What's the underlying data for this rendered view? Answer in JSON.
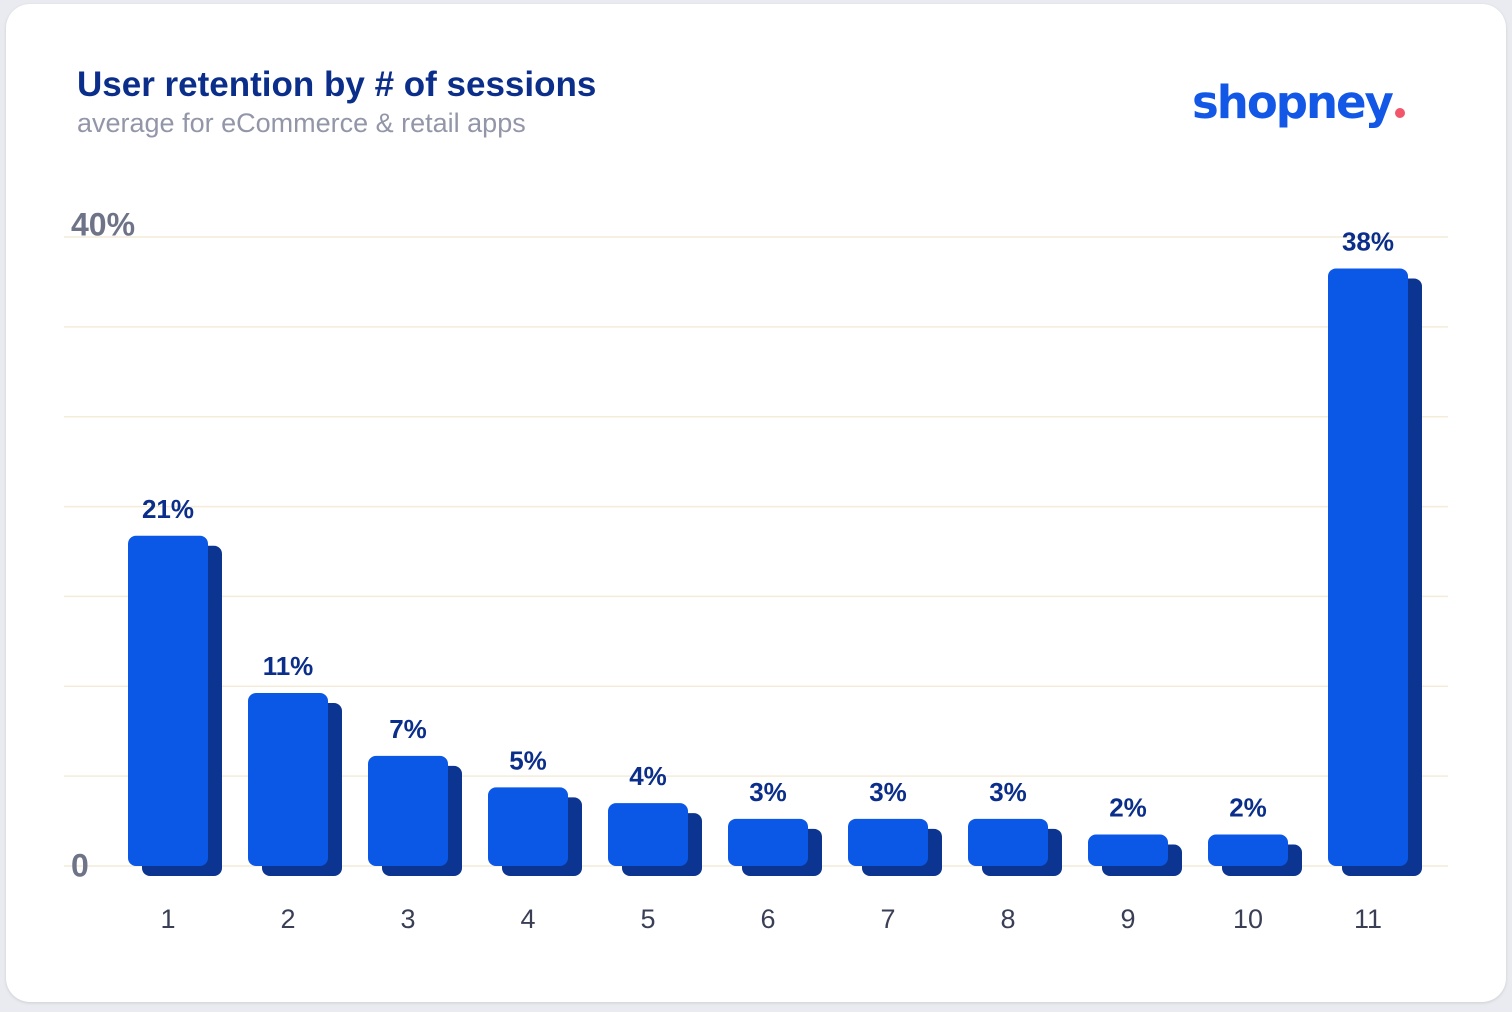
{
  "header": {
    "title": "User retention by # of sessions",
    "subtitle": "average for eCommerce & retail apps"
  },
  "brand": {
    "logo_text": "shopney",
    "logo_color": "#1257e6",
    "dot_color": "#f2566b"
  },
  "colors": {
    "bar": "#0b57e6",
    "bar_shadow": "#0b3590",
    "grid": "#f4ecd9",
    "value_label": "#0b2e8a"
  },
  "chart_data": {
    "type": "bar",
    "categories": [
      "1",
      "2",
      "3",
      "4",
      "5",
      "6",
      "7",
      "8",
      "9",
      "10",
      "11"
    ],
    "values": [
      21,
      11,
      7,
      5,
      4,
      3,
      3,
      3,
      2,
      2,
      38
    ],
    "value_labels": [
      "21%",
      "11%",
      "7%",
      "5%",
      "4%",
      "3%",
      "3%",
      "3%",
      "2%",
      "2%",
      "38%"
    ],
    "title": "User retention by # of sessions",
    "subtitle": "average for eCommerce & retail apps",
    "ylim": [
      0,
      40
    ],
    "y_tick_labels": [
      "0",
      "40%"
    ],
    "grid": true
  }
}
